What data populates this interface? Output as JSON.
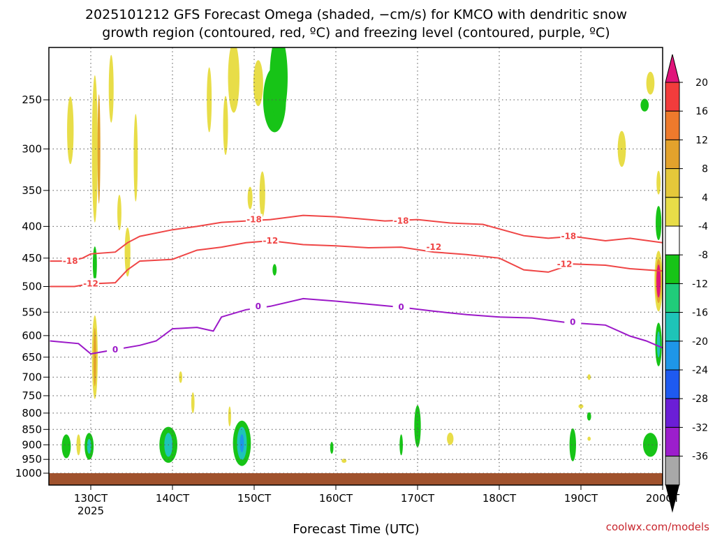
{
  "chart_data": {
    "type": "heatmap",
    "title_line1": "2025101212 GFS Forecast Omega (shaded, −cm/s) for KMCO with dendritic snow",
    "title_line2": "growth region (contoured, red, ºC) and freezing level (contoured, purple, ºC)",
    "xlabel": "Forecast Time (UTC)",
    "credit": "coolwx.com/models",
    "x_tick_labels": [
      "130CT",
      "140CT",
      "150CT",
      "160CT",
      "170CT",
      "180CT",
      "190CT",
      "200CT"
    ],
    "x_tick_sublabel": "2025",
    "y_tick_labels": [
      "250",
      "300",
      "350",
      "400",
      "450",
      "500",
      "550",
      "600",
      "650",
      "700",
      "750",
      "800",
      "850",
      "900",
      "950",
      "1000"
    ],
    "y_scale": "log-pressure (hPa), inverted",
    "grid": "dotted",
    "colorbar": {
      "labels": [
        "20",
        "16",
        "12",
        "8",
        "4",
        "-4",
        "-8",
        "-12",
        "-16",
        "-20",
        "-24",
        "-28",
        "-32",
        "-36"
      ],
      "bins": [
        {
          "color": "#f23c3c"
        },
        {
          "color": "#ee7a2c"
        },
        {
          "color": "#e3a22c"
        },
        {
          "color": "#e5c83a"
        },
        {
          "color": "#e8dd48"
        },
        {
          "color": "#ffffff"
        },
        {
          "color": "#17c417"
        },
        {
          "color": "#20cc7a"
        },
        {
          "color": "#1ec4b8"
        },
        {
          "color": "#1e96e8"
        },
        {
          "color": "#1e5af0"
        },
        {
          "color": "#6b1ed6"
        },
        {
          "color": "#9c1ecc"
        },
        {
          "color": "#a8a8a8"
        }
      ],
      "top_arrow_color": "#e0147a",
      "bottom_arrow_color": "#000000"
    },
    "contours": [
      {
        "name": "-18",
        "color": "#ef4545",
        "label": "-18",
        "points": [
          [
            12.5,
            455
          ],
          [
            12.75,
            455
          ],
          [
            12.9,
            450
          ],
          [
            13.0,
            443
          ],
          [
            13.3,
            440
          ],
          [
            13.45,
            425
          ],
          [
            13.6,
            415
          ],
          [
            14.0,
            405
          ],
          [
            14.3,
            400
          ],
          [
            14.6,
            394
          ],
          [
            14.9,
            392
          ],
          [
            15.2,
            390
          ],
          [
            15.6,
            384
          ],
          [
            16.0,
            386
          ],
          [
            16.6,
            392
          ],
          [
            17.0,
            390
          ],
          [
            17.4,
            395
          ],
          [
            17.8,
            397
          ],
          [
            18.3,
            414
          ],
          [
            18.6,
            418
          ],
          [
            18.9,
            415
          ],
          [
            19.3,
            422
          ],
          [
            19.6,
            418
          ],
          [
            20.0,
            425
          ]
        ],
        "label_positions": [
          [
            12.75,
            455
          ],
          [
            15.0,
            390
          ],
          [
            16.8,
            392
          ],
          [
            18.85,
            415
          ]
        ]
      },
      {
        "name": "-12",
        "color": "#ef4545",
        "label": "-12",
        "points": [
          [
            12.5,
            500
          ],
          [
            12.8,
            500
          ],
          [
            13.0,
            495
          ],
          [
            13.3,
            493
          ],
          [
            13.45,
            470
          ],
          [
            13.6,
            455
          ],
          [
            14.0,
            452
          ],
          [
            14.3,
            437
          ],
          [
            14.6,
            432
          ],
          [
            14.9,
            425
          ],
          [
            15.2,
            422
          ],
          [
            15.6,
            428
          ],
          [
            16.0,
            430
          ],
          [
            16.4,
            433
          ],
          [
            16.8,
            432
          ],
          [
            17.2,
            440
          ],
          [
            17.6,
            444
          ],
          [
            18.0,
            450
          ],
          [
            18.3,
            470
          ],
          [
            18.6,
            474
          ],
          [
            18.9,
            460
          ],
          [
            19.3,
            462
          ],
          [
            19.6,
            468
          ],
          [
            20.0,
            472
          ]
        ],
        "label_positions": [
          [
            13.0,
            495
          ],
          [
            15.2,
            422
          ],
          [
            17.2,
            432
          ],
          [
            18.8,
            460
          ]
        ]
      },
      {
        "name": "0",
        "color": "#9b18c8",
        "label": "0",
        "points": [
          [
            12.5,
            612
          ],
          [
            12.85,
            618
          ],
          [
            13.0,
            642
          ],
          [
            13.3,
            632
          ],
          [
            13.6,
            622
          ],
          [
            13.8,
            612
          ],
          [
            14.0,
            585
          ],
          [
            14.3,
            582
          ],
          [
            14.5,
            590
          ],
          [
            14.6,
            560
          ],
          [
            14.9,
            545
          ],
          [
            15.2,
            538
          ],
          [
            15.6,
            523
          ],
          [
            16.0,
            528
          ],
          [
            16.4,
            534
          ],
          [
            16.8,
            540
          ],
          [
            17.2,
            548
          ],
          [
            17.6,
            555
          ],
          [
            18.0,
            560
          ],
          [
            18.4,
            562
          ],
          [
            18.8,
            571
          ],
          [
            19.3,
            577
          ],
          [
            19.6,
            601
          ],
          [
            19.8,
            612
          ],
          [
            20.0,
            628
          ]
        ],
        "label_positions": [
          [
            13.3,
            632
          ],
          [
            15.05,
            538
          ],
          [
            16.8,
            540
          ],
          [
            18.9,
            571
          ]
        ]
      }
    ],
    "omega_shading": [
      {
        "x": 12.7,
        "p": 905,
        "w": 0.11,
        "hp": 80,
        "c": "#17c417"
      },
      {
        "x": 12.98,
        "p": 905,
        "w": 0.11,
        "hp": 90,
        "c": "#17c417"
      },
      {
        "x": 12.98,
        "p": 905,
        "w": 0.05,
        "hp": 50,
        "c": "#1ec4b8"
      },
      {
        "x": 12.85,
        "p": 900,
        "w": 0.05,
        "hp": 70,
        "c": "#e8dd48"
      },
      {
        "x": 13.05,
        "p": 460,
        "w": 0.05,
        "hp": 60,
        "c": "#17c417"
      },
      {
        "x": 13.05,
        "p": 650,
        "w": 0.07,
        "hp": 200,
        "c": "#e8dd48"
      },
      {
        "x": 13.05,
        "p": 650,
        "w": 0.03,
        "hp": 140,
        "c": "#e3a22c"
      },
      {
        "x": 13.95,
        "p": 900,
        "w": 0.22,
        "hp": 120,
        "c": "#17c417"
      },
      {
        "x": 13.95,
        "p": 900,
        "w": 0.1,
        "hp": 80,
        "c": "#1ec4b8"
      },
      {
        "x": 14.85,
        "p": 895,
        "w": 0.22,
        "hp": 150,
        "c": "#17c417"
      },
      {
        "x": 14.85,
        "p": 895,
        "w": 0.12,
        "hp": 110,
        "c": "#1ec4b8"
      },
      {
        "x": 14.85,
        "p": 895,
        "w": 0.05,
        "hp": 60,
        "c": "#1e96e8"
      },
      {
        "x": 15.25,
        "p": 250,
        "w": 0.28,
        "hp": 60,
        "c": "#17c417"
      },
      {
        "x": 15.3,
        "p": 230,
        "w": 0.22,
        "hp": 90,
        "c": "#17c417"
      },
      {
        "x": 15.25,
        "p": 470,
        "w": 0.05,
        "hp": 20,
        "c": "#17c417"
      },
      {
        "x": 15.95,
        "p": 910,
        "w": 0.04,
        "hp": 40,
        "c": "#17c417"
      },
      {
        "x": 16.1,
        "p": 955,
        "w": 0.06,
        "hp": 15,
        "c": "#e8dd48"
      },
      {
        "x": 16.8,
        "p": 900,
        "w": 0.04,
        "hp": 70,
        "c": "#17c417"
      },
      {
        "x": 17.0,
        "p": 840,
        "w": 0.08,
        "hp": 130,
        "c": "#17c417"
      },
      {
        "x": 17.4,
        "p": 880,
        "w": 0.08,
        "hp": 40,
        "c": "#e8dd48"
      },
      {
        "x": 18.9,
        "p": 900,
        "w": 0.08,
        "hp": 110,
        "c": "#17c417"
      },
      {
        "x": 19.1,
        "p": 810,
        "w": 0.05,
        "hp": 25,
        "c": "#17c417"
      },
      {
        "x": 19.1,
        "p": 700,
        "w": 0.04,
        "hp": 15,
        "c": "#e8dd48"
      },
      {
        "x": 19.85,
        "p": 900,
        "w": 0.18,
        "hp": 80,
        "c": "#17c417"
      },
      {
        "x": 19.85,
        "p": 235,
        "w": 0.1,
        "hp": 20,
        "c": "#e8dd48"
      },
      {
        "x": 19.78,
        "p": 255,
        "w": 0.1,
        "hp": 12,
        "c": "#17c417"
      },
      {
        "x": 19.5,
        "p": 300,
        "w": 0.1,
        "hp": 40,
        "c": "#e8dd48"
      },
      {
        "x": 19.95,
        "p": 490,
        "w": 0.1,
        "hp": 110,
        "c": "#e8dd48"
      },
      {
        "x": 19.95,
        "p": 490,
        "w": 0.07,
        "hp": 80,
        "c": "#e3a22c"
      },
      {
        "x": 19.95,
        "p": 490,
        "w": 0.05,
        "hp": 60,
        "c": "#e0147a"
      },
      {
        "x": 19.95,
        "p": 395,
        "w": 0.07,
        "hp": 50,
        "c": "#17c417"
      },
      {
        "x": 19.95,
        "p": 620,
        "w": 0.08,
        "hp": 100,
        "c": "#17c417"
      },
      {
        "x": 19.95,
        "p": 620,
        "w": 0.04,
        "hp": 60,
        "c": "#1ec4b8"
      },
      {
        "x": 19.95,
        "p": 340,
        "w": 0.05,
        "hp": 30,
        "c": "#e8dd48"
      },
      {
        "x": 12.75,
        "p": 280,
        "w": 0.08,
        "hp": 70,
        "c": "#e8dd48"
      },
      {
        "x": 13.05,
        "p": 300,
        "w": 0.07,
        "hp": 160,
        "c": "#e8dd48"
      },
      {
        "x": 13.1,
        "p": 300,
        "w": 0.03,
        "hp": 120,
        "c": "#e3a22c"
      },
      {
        "x": 13.25,
        "p": 240,
        "w": 0.06,
        "hp": 60,
        "c": "#e8dd48"
      },
      {
        "x": 13.35,
        "p": 380,
        "w": 0.05,
        "hp": 50,
        "c": "#e8dd48"
      },
      {
        "x": 13.45,
        "p": 440,
        "w": 0.07,
        "hp": 80,
        "c": "#e8dd48"
      },
      {
        "x": 13.55,
        "p": 310,
        "w": 0.05,
        "hp": 100,
        "c": "#e8dd48"
      },
      {
        "x": 14.45,
        "p": 250,
        "w": 0.06,
        "hp": 60,
        "c": "#e8dd48"
      },
      {
        "x": 14.65,
        "p": 275,
        "w": 0.06,
        "hp": 60,
        "c": "#e8dd48"
      },
      {
        "x": 14.75,
        "p": 230,
        "w": 0.14,
        "hp": 60,
        "c": "#e8dd48"
      },
      {
        "x": 14.95,
        "p": 360,
        "w": 0.06,
        "hp": 30,
        "c": "#e8dd48"
      },
      {
        "x": 15.05,
        "p": 235,
        "w": 0.12,
        "hp": 40,
        "c": "#e8dd48"
      },
      {
        "x": 15.1,
        "p": 355,
        "w": 0.07,
        "hp": 60,
        "c": "#e8dd48"
      },
      {
        "x": 14.7,
        "p": 810,
        "w": 0.03,
        "hp": 60,
        "c": "#e8dd48"
      },
      {
        "x": 14.1,
        "p": 700,
        "w": 0.04,
        "hp": 30,
        "c": "#e8dd48"
      },
      {
        "x": 14.25,
        "p": 770,
        "w": 0.04,
        "hp": 60,
        "c": "#e8dd48"
      },
      {
        "x": 19.0,
        "p": 780,
        "w": 0.06,
        "hp": 10,
        "c": "#e8dd48"
      },
      {
        "x": 19.1,
        "p": 880,
        "w": 0.04,
        "hp": 10,
        "c": "#e8dd48"
      }
    ]
  }
}
